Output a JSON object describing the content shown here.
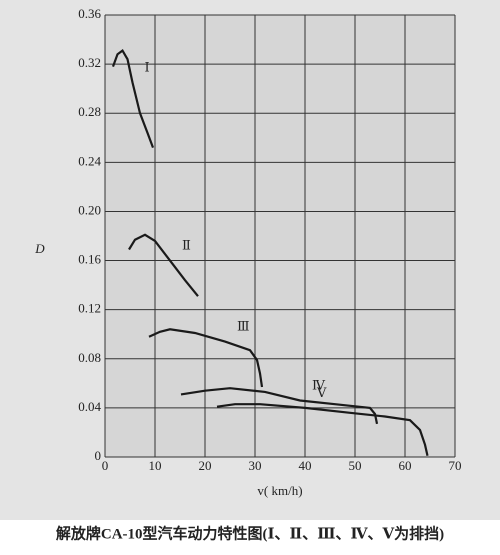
{
  "chart_data": {
    "type": "line",
    "caption": "解放牌CA-10型汽车动力特性图(Ⅰ、Ⅱ、Ⅲ、Ⅳ、Ⅴ为排挡)",
    "x_label": "v( km/h)",
    "y_label": "D",
    "xlim": [
      0,
      70
    ],
    "ylim": [
      0,
      0.36
    ],
    "xticks": [
      0,
      10,
      20,
      30,
      40,
      50,
      60,
      70
    ],
    "yticks": [
      0,
      0.04,
      0.08,
      0.12,
      0.16,
      {
        "value": 0.2,
        "label": "0.20"
      },
      0.24,
      0.28,
      0.32,
      0.36
    ],
    "grid": true,
    "series": [
      {
        "name": "Ⅰ",
        "color": "#1a1a1a",
        "x": [
          1.6,
          2.5,
          3.5,
          4.5,
          5.5,
          7,
          8.5,
          9.6
        ],
        "values": [
          0.318,
          0.328,
          0.331,
          0.324,
          0.305,
          0.28,
          0.264,
          0.252
        ]
      },
      {
        "name": "Ⅱ",
        "color": "#1a1a1a",
        "x": [
          4.8,
          6,
          8,
          10,
          13,
          16,
          18.6
        ],
        "values": [
          0.169,
          0.177,
          0.181,
          0.176,
          0.16,
          0.144,
          0.131
        ]
      },
      {
        "name": "Ⅲ",
        "color": "#1a1a1a",
        "x": [
          8.8,
          11,
          13,
          18,
          24,
          29,
          30.4,
          31,
          31.4
        ],
        "values": [
          0.098,
          0.102,
          0.104,
          0.101,
          0.094,
          0.087,
          0.079,
          0.068,
          0.057
        ]
      },
      {
        "name": "Ⅳ",
        "color": "#1a1a1a",
        "x": [
          15.2,
          20,
          25,
          32,
          39,
          46,
          53,
          54,
          54.4
        ],
        "values": [
          0.051,
          0.054,
          0.056,
          0.053,
          0.046,
          0.043,
          0.04,
          0.035,
          0.027
        ]
      },
      {
        "name": "Ⅴ",
        "color": "#1a1a1a",
        "x": [
          22.4,
          26,
          31,
          40,
          49,
          56,
          61,
          63,
          64,
          64.5
        ],
        "values": [
          0.041,
          0.043,
          0.043,
          0.04,
          0.036,
          0.033,
          0.03,
          0.022,
          0.01,
          0.001
        ]
      }
    ]
  }
}
